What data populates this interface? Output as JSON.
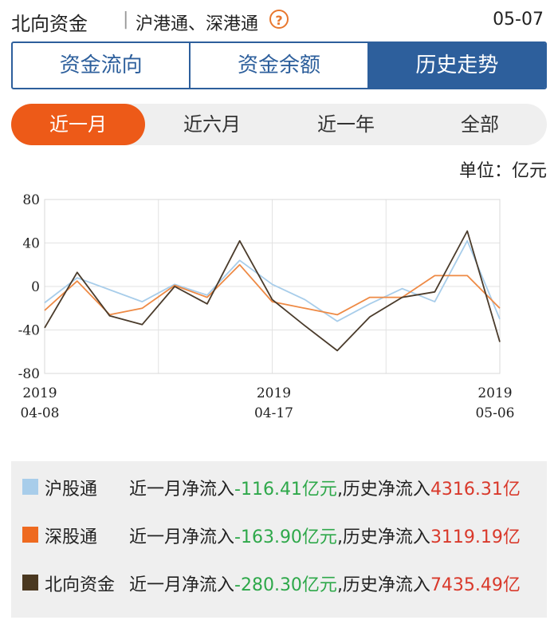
{
  "header": {
    "title": "北向资金",
    "separator": "|",
    "subtitle": "沪港通、深港通",
    "help_icon": "question-circle-icon",
    "date": "05-07"
  },
  "tabs": [
    {
      "label": "资金流向",
      "active": false
    },
    {
      "label": "资金余额",
      "active": false
    },
    {
      "label": "历史走势",
      "active": true
    }
  ],
  "periods": [
    {
      "label": "近一月",
      "active": true
    },
    {
      "label": "近六月",
      "active": false
    },
    {
      "label": "近一年",
      "active": false
    },
    {
      "label": "全部",
      "active": false
    }
  ],
  "unit_label": "单位：亿元",
  "chart_data": {
    "type": "line",
    "ylim": [
      -80,
      80
    ],
    "yticks": [
      "80",
      "40",
      "0",
      "-40",
      "-80"
    ],
    "xlabels": [
      {
        "year": "2019",
        "date": "04-08"
      },
      {
        "year": "2019",
        "date": "04-17"
      },
      {
        "year": "2019",
        "date": "05-06"
      }
    ],
    "grid": true,
    "series": [
      {
        "name": "沪股通",
        "color": "#a8cdea",
        "values": [
          -15,
          8,
          -3,
          -14,
          2,
          -8,
          24,
          2,
          -12,
          -32,
          -16,
          -2,
          -14,
          42,
          -30
        ]
      },
      {
        "name": "深股通",
        "color": "#ee8a45",
        "values": [
          -22,
          5,
          -26,
          -20,
          1,
          -10,
          20,
          -14,
          -20,
          -26,
          -10,
          -10,
          10,
          10,
          -20
        ]
      },
      {
        "name": "北向资金",
        "color": "#4a3b2b",
        "values": [
          -38,
          13,
          -27,
          -35,
          0,
          -16,
          42,
          -12,
          -36,
          -59,
          -28,
          -10,
          -5,
          51,
          -51
        ]
      }
    ]
  },
  "legend": [
    {
      "name": "沪股通",
      "color": "#a8cdea",
      "prefix": "近一月净流入",
      "month": "-116.41亿元",
      "mid": ",历史净流入",
      "history": "4316.31亿"
    },
    {
      "name": "深股通",
      "color": "#ee6a20",
      "prefix": "近一月净流入",
      "month": "-163.90亿元",
      "mid": ",历史净流入",
      "history": "3119.19亿"
    },
    {
      "name": "北向资金",
      "color": "#4a3820",
      "prefix": "近一月净流入",
      "month": "-280.30亿元",
      "mid": ",历史净流入",
      "history": "7435.49亿"
    }
  ]
}
